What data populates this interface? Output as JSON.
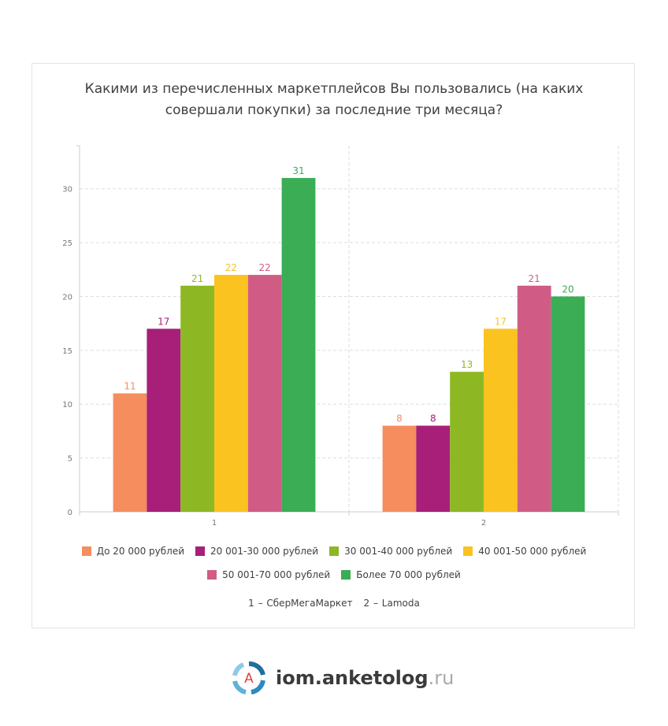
{
  "title_lines": [
    "Какими из перечисленных маркетплейсов Вы пользовались (на каких",
    "совершали покупки) за последние три месяца?"
  ],
  "chart_data": {
    "type": "bar",
    "categories": [
      "1",
      "2"
    ],
    "series": [
      {
        "name": "До 20 000 рублей",
        "color": "#f58d5f",
        "values": [
          11,
          8
        ]
      },
      {
        "name": "20 001-30 000 рублей",
        "color": "#a71f78",
        "values": [
          17,
          8
        ]
      },
      {
        "name": "30 001-40 000 рублей",
        "color": "#8db824",
        "values": [
          21,
          13
        ]
      },
      {
        "name": "40 001-50 000 рублей",
        "color": "#fac320",
        "values": [
          22,
          17
        ]
      },
      {
        "name": "50 001-70 000 рублей",
        "color": "#d05c86",
        "values": [
          22,
          21
        ]
      },
      {
        "name": "Более 70 000 рублей",
        "color": "#3aad55",
        "values": [
          31,
          20
        ]
      }
    ],
    "yticks": [
      0,
      5,
      10,
      15,
      20,
      25,
      30
    ],
    "ylim": [
      0,
      34
    ],
    "grid": true,
    "legend_position": "bottom",
    "xlabel": "",
    "ylabel": ""
  },
  "note": {
    "item1": "1 – СберМегаМаркет",
    "item2": "2 – Lamoda"
  },
  "brand": {
    "logo_letter": "A",
    "name": "iom.anketolog",
    "tld": ".ru"
  }
}
